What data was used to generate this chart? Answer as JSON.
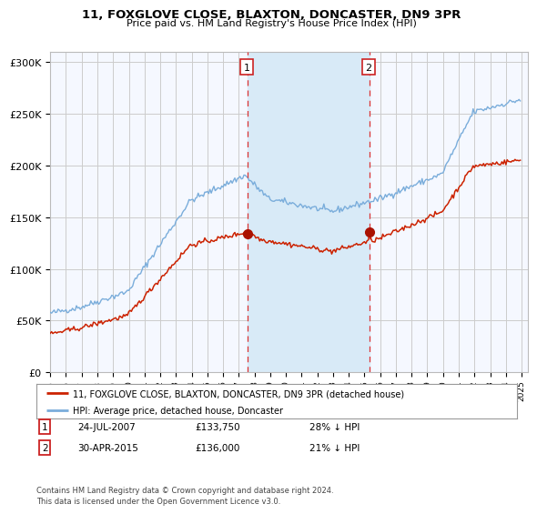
{
  "title": "11, FOXGLOVE CLOSE, BLAXTON, DONCASTER, DN9 3PR",
  "subtitle": "Price paid vs. HM Land Registry's House Price Index (HPI)",
  "legend_entries": [
    "11, FOXGLOVE CLOSE, BLAXTON, DONCASTER, DN9 3PR (detached house)",
    "HPI: Average price, detached house, Doncaster"
  ],
  "table_rows": [
    {
      "n": "1",
      "date": "24-JUL-2007",
      "price": "£133,750",
      "pct": "28% ↓ HPI"
    },
    {
      "n": "2",
      "date": "30-APR-2015",
      "price": "£136,000",
      "pct": "21% ↓ HPI"
    }
  ],
  "footer": "Contains HM Land Registry data © Crown copyright and database right 2024.\nThis data is licensed under the Open Government Licence v3.0.",
  "hpi_color": "#7aaddb",
  "property_color": "#cc2200",
  "dot_color": "#aa1100",
  "vline_color": "#dd3333",
  "shade_color": "#d8eaf7",
  "grid_color": "#cccccc",
  "bg_color": "#ffffff",
  "plot_bg_color": "#f5f8ff",
  "ylim": [
    0,
    310000
  ],
  "yticks": [
    0,
    50000,
    100000,
    150000,
    200000,
    250000,
    300000
  ],
  "ytick_labels": [
    "£0",
    "£50K",
    "£100K",
    "£150K",
    "£200K",
    "£250K",
    "£300K"
  ],
  "xtick_years": [
    1995,
    1996,
    1997,
    1998,
    1999,
    2000,
    2001,
    2002,
    2003,
    2004,
    2005,
    2006,
    2007,
    2008,
    2009,
    2010,
    2011,
    2012,
    2013,
    2014,
    2015,
    2016,
    2017,
    2018,
    2019,
    2020,
    2021,
    2022,
    2023,
    2024,
    2025
  ]
}
